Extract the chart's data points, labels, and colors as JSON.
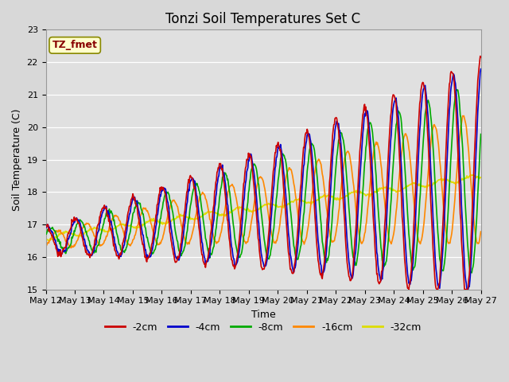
{
  "title": "Tonzi Soil Temperatures Set C",
  "xlabel": "Time",
  "ylabel": "Soil Temperature (C)",
  "ylim": [
    15.0,
    23.0
  ],
  "yticks": [
    15.0,
    16.0,
    17.0,
    18.0,
    19.0,
    20.0,
    21.0,
    22.0,
    23.0
  ],
  "background_color": "#d8d8d8",
  "plot_bg_color": "#e0e0e0",
  "series_colors": {
    "-2cm": "#cc0000",
    "-4cm": "#0000cc",
    "-8cm": "#00aa00",
    "-16cm": "#ff8800",
    "-32cm": "#dddd00"
  },
  "annotation_label": "TZ_fmet",
  "annotation_color": "#880000",
  "annotation_bg": "#ffffcc",
  "annotation_edge": "#888800",
  "n_points": 720,
  "n_days": 15,
  "start_day": 12,
  "title_fontsize": 12,
  "label_fontsize": 9,
  "tick_fontsize": 8,
  "legend_fontsize": 9,
  "linewidth": 1.2
}
